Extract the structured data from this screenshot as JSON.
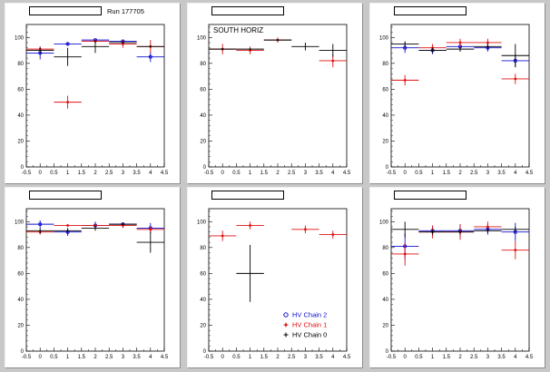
{
  "colors": {
    "chain2": "#1010d0",
    "chain1": "#e01010",
    "chain0": "#000000",
    "background": "#c8c8c8",
    "pad": "#ffffff"
  },
  "legend": {
    "entries": [
      {
        "label": "HV Chain 2",
        "series": "chain2",
        "marker": "circle"
      },
      {
        "label": "HV Chain 1",
        "series": "chain1",
        "marker": "star"
      },
      {
        "label": "HV Chain 0",
        "series": "chain0",
        "marker": "cross"
      }
    ]
  },
  "chart_data": [
    {
      "type": "scatter",
      "pad_title": "",
      "annotation": "Run 177705",
      "x_ticks": [
        "-0.5",
        "0",
        "0.5",
        "1",
        "1.5",
        "2",
        "2.5",
        "3",
        "3.5",
        "4",
        "4.5"
      ],
      "y_ticks": [
        "0",
        "20",
        "40",
        "60",
        "80",
        "100"
      ],
      "xlim": [
        -0.5,
        4.5
      ],
      "ylim": [
        0,
        110
      ],
      "grid": false,
      "series": [
        {
          "key": "chain2",
          "points": [
            [
              0,
              88,
              5
            ],
            [
              1,
              95,
              1
            ],
            [
              2,
              98,
              1
            ],
            [
              3,
              97,
              1
            ],
            [
              4,
              85,
              4
            ]
          ]
        },
        {
          "key": "chain1",
          "points": [
            [
              0,
              91,
              2
            ],
            [
              1,
              50,
              5
            ],
            [
              2,
              97,
              2
            ],
            [
              3,
              95,
              3
            ],
            [
              4,
              93,
              5
            ]
          ]
        },
        {
          "key": "chain0",
          "points": [
            [
              0,
              90,
              2
            ],
            [
              1,
              85,
              7
            ],
            [
              2,
              93,
              5
            ],
            [
              3,
              96,
              1
            ],
            [
              4,
              93,
              1
            ]
          ]
        }
      ]
    },
    {
      "type": "scatter",
      "pad_title": "",
      "annotation": "SOUTH HORIZ",
      "x_ticks": [
        "-0.5",
        "0",
        "0.5",
        "1",
        "1.5",
        "2",
        "2.5",
        "3",
        "3.5",
        "4",
        "4.5"
      ],
      "y_ticks": [
        "0",
        "20",
        "40",
        "60",
        "80",
        "100"
      ],
      "xlim": [
        -0.5,
        4.5
      ],
      "ylim": [
        0,
        110
      ],
      "grid": false,
      "series": [
        {
          "key": "chain2",
          "points": []
        },
        {
          "key": "chain1",
          "points": [
            [
              0,
              91,
              4
            ],
            [
              1,
              90,
              3
            ],
            [
              2,
              98,
              2
            ],
            [
              4,
              82,
              5
            ]
          ]
        },
        {
          "key": "chain0",
          "points": [
            [
              0,
              91,
              1
            ],
            [
              1,
              91,
              1
            ],
            [
              2,
              98,
              1
            ],
            [
              3,
              93,
              3
            ],
            [
              4,
              90,
              5
            ]
          ]
        }
      ]
    },
    {
      "type": "scatter",
      "pad_title": "",
      "annotation": "",
      "x_ticks": [
        "-0.5",
        "0",
        "0.5",
        "1",
        "1.5",
        "2",
        "2.5",
        "3",
        "3.5",
        "4",
        "4.5"
      ],
      "y_ticks": [
        "0",
        "20",
        "40",
        "60",
        "80",
        "100"
      ],
      "xlim": [
        -0.5,
        4.5
      ],
      "ylim": [
        0,
        110
      ],
      "grid": false,
      "series": [
        {
          "key": "chain2",
          "points": [
            [
              0,
              92,
              4
            ],
            [
              1,
              90,
              3
            ],
            [
              2,
              93,
              4
            ],
            [
              3,
              92,
              3
            ],
            [
              4,
              82,
              5
            ]
          ]
        },
        {
          "key": "chain1",
          "points": [
            [
              0,
              67,
              4
            ],
            [
              1,
              92,
              3
            ],
            [
              2,
              96,
              3
            ],
            [
              3,
              96,
              3
            ],
            [
              4,
              68,
              4
            ]
          ]
        },
        {
          "key": "chain0",
          "points": [
            [
              0,
              95,
              2
            ],
            [
              1,
              90,
              2
            ],
            [
              2,
              91,
              2
            ],
            [
              3,
              93,
              2
            ],
            [
              4,
              86,
              9
            ]
          ]
        }
      ]
    },
    {
      "type": "scatter",
      "pad_title": "",
      "annotation": "",
      "x_ticks": [
        "-0.5",
        "0",
        "0.5",
        "1",
        "1.5",
        "2",
        "2.5",
        "3",
        "3.5",
        "4",
        "4.5"
      ],
      "y_ticks": [
        "0",
        "20",
        "40",
        "60",
        "80",
        "100"
      ],
      "xlim": [
        -0.5,
        4.5
      ],
      "ylim": [
        0,
        110
      ],
      "grid": false,
      "series": [
        {
          "key": "chain2",
          "points": [
            [
              0,
              98,
              3
            ],
            [
              1,
              92,
              3
            ],
            [
              2,
              97,
              3
            ],
            [
              3,
              98,
              1
            ],
            [
              4,
              95,
              4
            ]
          ]
        },
        {
          "key": "chain1",
          "points": [
            [
              0,
              92,
              2
            ],
            [
              1,
              97,
              1
            ],
            [
              2,
              97,
              1
            ],
            [
              3,
              97,
              2
            ],
            [
              4,
              94,
              2
            ]
          ]
        },
        {
          "key": "chain0",
          "points": [
            [
              0,
              93,
              2
            ],
            [
              1,
              93,
              2
            ],
            [
              2,
              95,
              2
            ],
            [
              3,
              98,
              1
            ],
            [
              4,
              84,
              8
            ]
          ]
        }
      ]
    },
    {
      "type": "scatter",
      "pad_title": "",
      "annotation": "",
      "x_ticks": [
        "-0.5",
        "0",
        "0.5",
        "1",
        "1.5",
        "2",
        "2.5",
        "3",
        "3.5",
        "4",
        "4.5"
      ],
      "y_ticks": [
        "0",
        "20",
        "40",
        "60",
        "80",
        "100"
      ],
      "xlim": [
        -0.5,
        4.5
      ],
      "ylim": [
        0,
        110
      ],
      "grid": false,
      "series": [
        {
          "key": "chain2",
          "points": []
        },
        {
          "key": "chain1",
          "points": [
            [
              0,
              89,
              4
            ],
            [
              1,
              97,
              3
            ],
            [
              3,
              94,
              3
            ],
            [
              4,
              90,
              3
            ]
          ]
        },
        {
          "key": "chain0",
          "points": [
            [
              1,
              60,
              22
            ]
          ]
        }
      ]
    },
    {
      "type": "scatter",
      "pad_title": "",
      "annotation": "",
      "x_ticks": [
        "-0.5",
        "0",
        "0.5",
        "1",
        "1.5",
        "2",
        "2.5",
        "3",
        "3.5",
        "4",
        "4.5"
      ],
      "y_ticks": [
        "0",
        "20",
        "40",
        "60",
        "80",
        "100"
      ],
      "xlim": [
        -0.5,
        4.5
      ],
      "ylim": [
        0,
        110
      ],
      "grid": false,
      "series": [
        {
          "key": "chain2",
          "points": [
            [
              0,
              81,
              10
            ],
            [
              1,
              93,
              4
            ],
            [
              2,
              93,
              5
            ],
            [
              3,
              94,
              4
            ],
            [
              4,
              92,
              7
            ]
          ]
        },
        {
          "key": "chain1",
          "points": [
            [
              0,
              75,
              9
            ],
            [
              1,
              92,
              5
            ],
            [
              2,
              92,
              6
            ],
            [
              3,
              96,
              4
            ],
            [
              4,
              78,
              7
            ]
          ]
        },
        {
          "key": "chain0",
          "points": [
            [
              0,
              94,
              6
            ],
            [
              1,
              92,
              2
            ],
            [
              2,
              92,
              2
            ],
            [
              3,
              93,
              2
            ],
            [
              4,
              94,
              2
            ]
          ]
        }
      ]
    }
  ]
}
